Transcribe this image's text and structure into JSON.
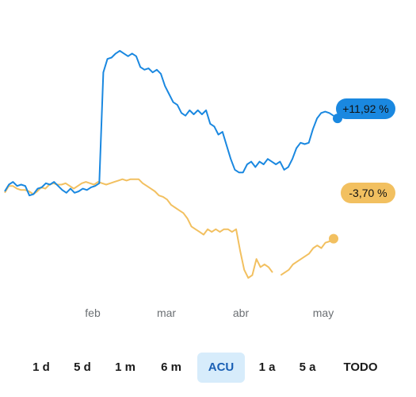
{
  "colors": {
    "series_a": "#1a88e0",
    "series_b": "#f2c060",
    "active_bg": "#d7ecfb",
    "active_text": "#1a5fb4"
  },
  "chart_data": {
    "type": "line",
    "x_ticks": [
      "feb",
      "mar",
      "abr",
      "may"
    ],
    "series": [
      {
        "color": "#1a88e0",
        "end_label": "+11,92 %",
        "values": [
          5,
          7.5,
          8.5,
          7,
          7.5,
          7,
          3.5,
          4,
          6,
          6.5,
          8,
          7.5,
          8.5,
          7,
          5.5,
          4.5,
          6,
          4.5,
          5,
          6,
          5.5,
          6.5,
          7,
          8,
          49,
          54,
          54.5,
          56,
          57,
          56,
          55,
          56,
          55,
          51,
          50,
          50.5,
          49,
          50,
          48.5,
          44,
          41,
          38,
          37,
          34,
          33,
          35,
          33.5,
          35,
          33.5,
          35,
          30,
          29,
          26,
          27,
          22,
          17,
          13,
          12,
          12,
          15,
          16,
          14,
          16,
          15,
          17,
          16,
          15,
          16,
          13,
          14,
          17,
          21,
          23,
          22.5,
          23,
          28,
          32,
          34,
          34.5,
          34,
          33,
          32
        ]
      },
      {
        "color": "#f2c060",
        "end_label": "-3,70 %",
        "values": [
          4.5,
          7,
          7,
          6,
          5.5,
          5.5,
          5,
          4,
          5,
          6.5,
          6,
          7.5,
          8,
          7.5,
          7.5,
          8,
          7,
          6,
          7,
          8,
          8.5,
          8,
          7.5,
          8.5,
          8,
          7.5,
          8,
          8.5,
          9,
          9.5,
          9,
          9.5,
          9.5,
          9.5,
          8,
          7,
          6,
          5,
          3.5,
          3,
          2,
          0,
          -1,
          -2,
          -3,
          -5,
          -8,
          -9,
          -10,
          -11,
          -9,
          -10,
          -9,
          -10,
          -9,
          -9,
          -10,
          -9,
          -17,
          -24,
          -27,
          -26,
          -20,
          -23,
          -22,
          -23,
          -25,
          null,
          -26,
          -25,
          -24,
          -22,
          -21,
          -20,
          -19,
          -18,
          -16,
          -15,
          -16,
          -14,
          -13.5,
          -13,
          -12.5
        ]
      }
    ]
  },
  "ranges": [
    "1 d",
    "5 d",
    "1 m",
    "6 m",
    "ACU",
    "1 a",
    "5 a",
    "TODO"
  ],
  "active_range": "ACU"
}
